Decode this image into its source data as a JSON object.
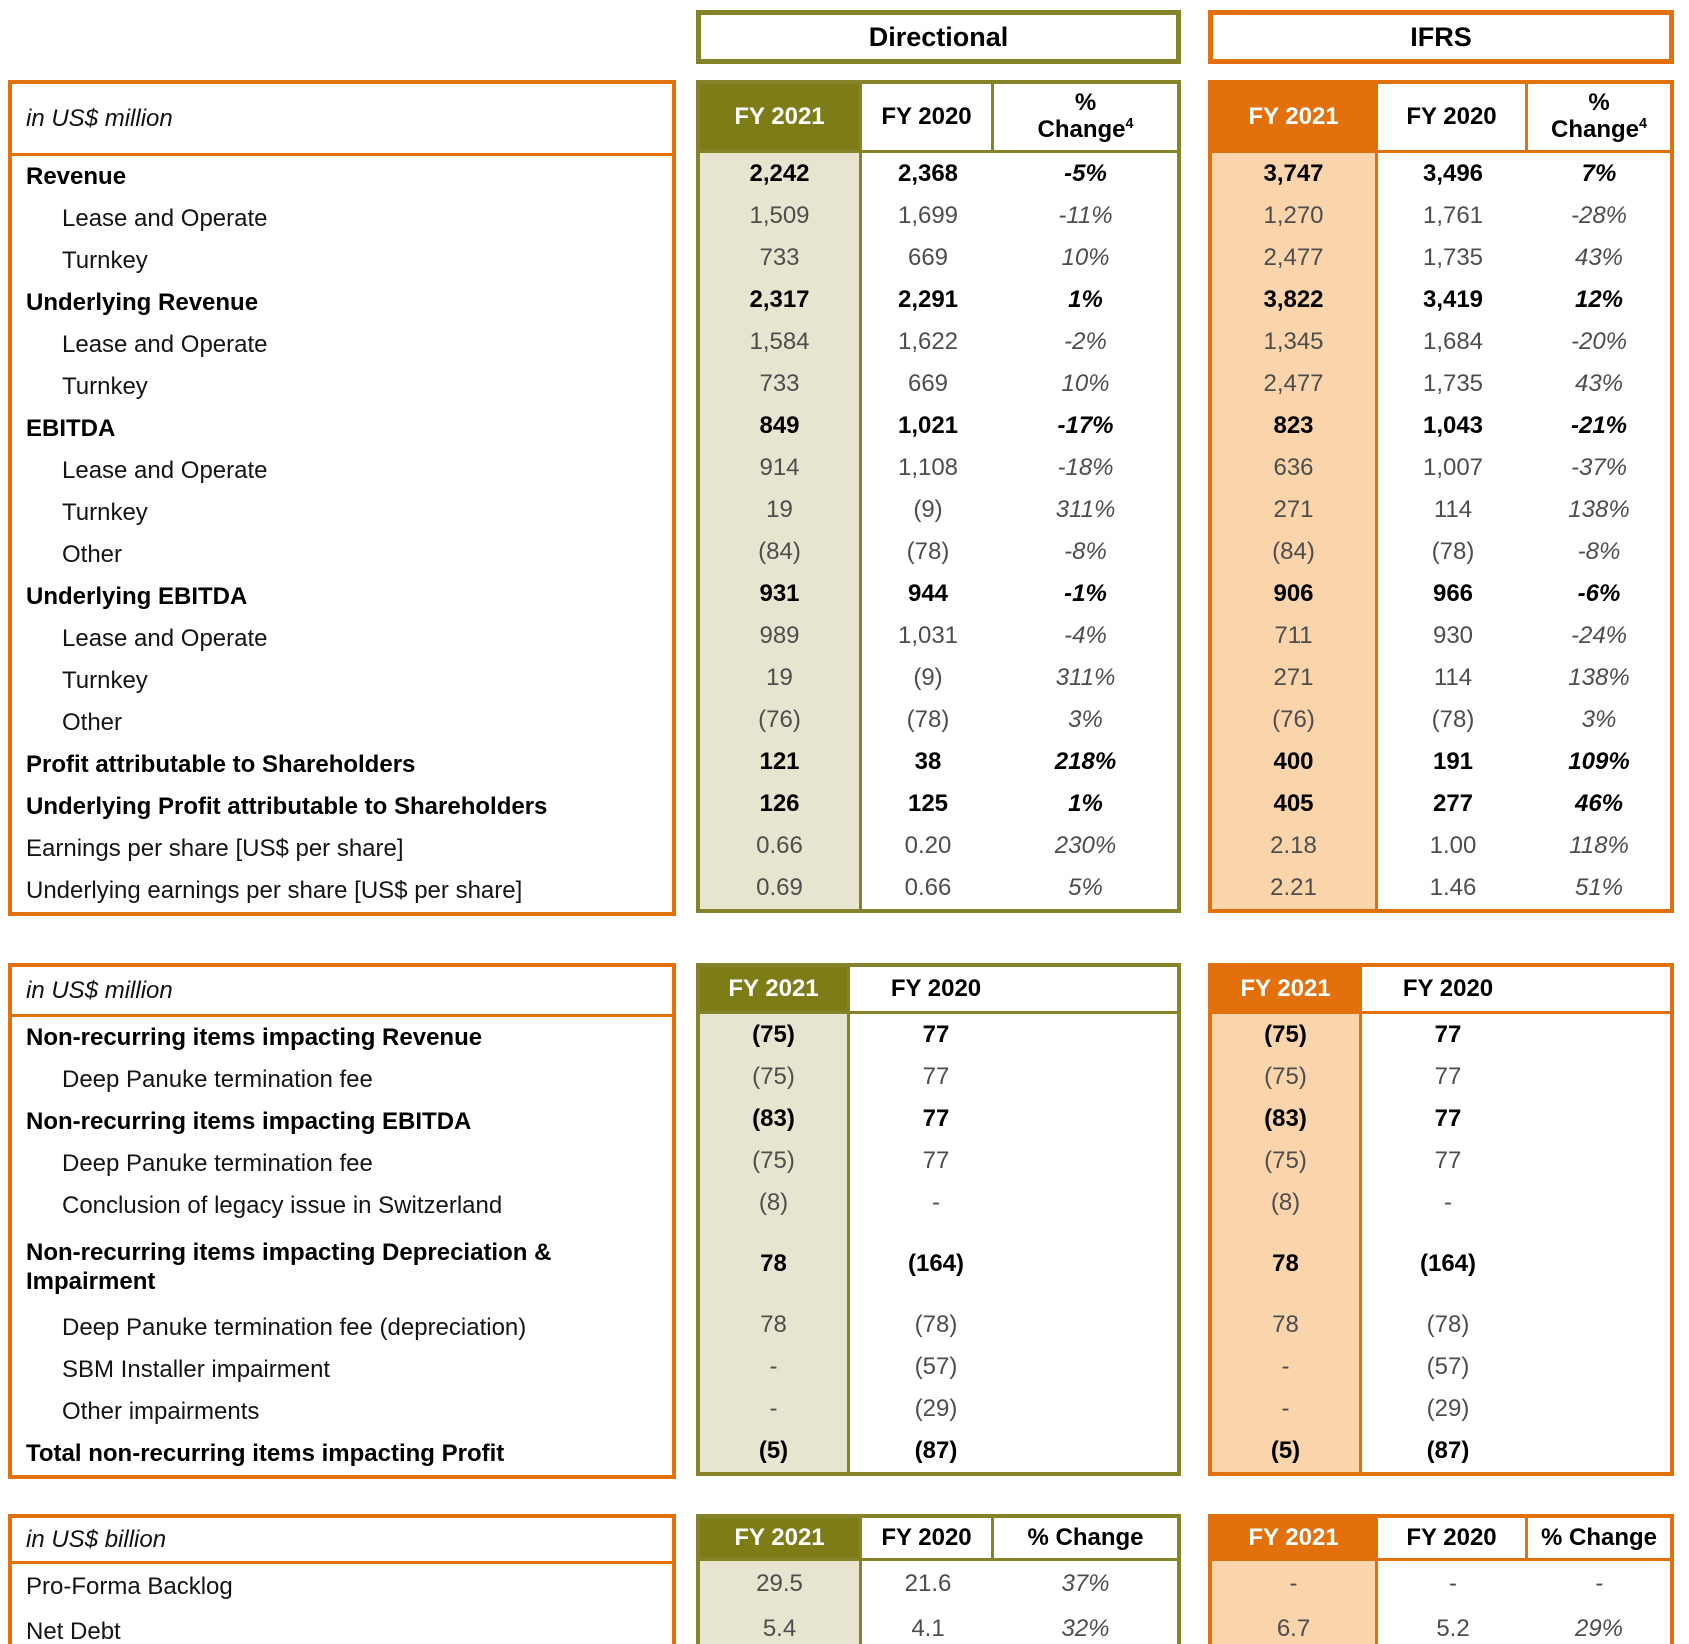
{
  "colors": {
    "orange": "#E2700D",
    "orange_light": "#FAD4AB",
    "olive": "#7D7C17",
    "olive_border": "#84832A",
    "olive_light": "#E7E5D0",
    "page_background": "#FFFFFF"
  },
  "groups": [
    {
      "title": "Directional"
    },
    {
      "title": "IFRS"
    }
  ],
  "tables": [
    {
      "unit_label": "in US$ million",
      "headers": {
        "fy2021": "FY 2021",
        "fy2020": "FY 2020",
        "change_line1": "%",
        "change_line2": "Change",
        "change_sup": "4",
        "has_change": true,
        "change_two_line": true
      },
      "rows": [
        {
          "label": "Revenue",
          "bold": true,
          "indent": false,
          "dir": [
            "2,242",
            "2,368",
            "-5%"
          ],
          "ifrs": [
            "3,747",
            "3,496",
            "7%"
          ]
        },
        {
          "label": "Lease and Operate",
          "bold": false,
          "indent": true,
          "dir": [
            "1,509",
            "1,699",
            "-11%"
          ],
          "ifrs": [
            "1,270",
            "1,761",
            "-28%"
          ]
        },
        {
          "label": "Turnkey",
          "bold": false,
          "indent": true,
          "dir": [
            "733",
            "669",
            "10%"
          ],
          "ifrs": [
            "2,477",
            "1,735",
            "43%"
          ]
        },
        {
          "label": "Underlying Revenue",
          "bold": true,
          "indent": false,
          "dir": [
            "2,317",
            "2,291",
            "1%"
          ],
          "ifrs": [
            "3,822",
            "3,419",
            "12%"
          ]
        },
        {
          "label": "Lease and Operate",
          "bold": false,
          "indent": true,
          "dir": [
            "1,584",
            "1,622",
            "-2%"
          ],
          "ifrs": [
            "1,345",
            "1,684",
            "-20%"
          ]
        },
        {
          "label": "Turnkey",
          "bold": false,
          "indent": true,
          "dir": [
            "733",
            "669",
            "10%"
          ],
          "ifrs": [
            "2,477",
            "1,735",
            "43%"
          ]
        },
        {
          "label": "EBITDA",
          "bold": true,
          "indent": false,
          "dir": [
            "849",
            "1,021",
            "-17%"
          ],
          "ifrs": [
            "823",
            "1,043",
            "-21%"
          ]
        },
        {
          "label": "Lease and Operate",
          "bold": false,
          "indent": true,
          "dir": [
            "914",
            "1,108",
            "-18%"
          ],
          "ifrs": [
            "636",
            "1,007",
            "-37%"
          ]
        },
        {
          "label": "Turnkey",
          "bold": false,
          "indent": true,
          "dir": [
            "19",
            "(9)",
            "311%"
          ],
          "ifrs": [
            "271",
            "114",
            "138%"
          ]
        },
        {
          "label": "Other",
          "bold": false,
          "indent": true,
          "dir": [
            "(84)",
            "(78)",
            "-8%"
          ],
          "ifrs": [
            "(84)",
            "(78)",
            "-8%"
          ]
        },
        {
          "label": "Underlying EBITDA",
          "bold": true,
          "indent": false,
          "dir": [
            "931",
            "944",
            "-1%"
          ],
          "ifrs": [
            "906",
            "966",
            "-6%"
          ]
        },
        {
          "label": "Lease and Operate",
          "bold": false,
          "indent": true,
          "dir": [
            "989",
            "1,031",
            "-4%"
          ],
          "ifrs": [
            "711",
            "930",
            "-24%"
          ]
        },
        {
          "label": "Turnkey",
          "bold": false,
          "indent": true,
          "dir": [
            "19",
            "(9)",
            "311%"
          ],
          "ifrs": [
            "271",
            "114",
            "138%"
          ]
        },
        {
          "label": "Other",
          "bold": false,
          "indent": true,
          "dir": [
            "(76)",
            "(78)",
            "3%"
          ],
          "ifrs": [
            "(76)",
            "(78)",
            "3%"
          ]
        },
        {
          "label": "Profit attributable to Shareholders",
          "bold": true,
          "indent": false,
          "dir": [
            "121",
            "38",
            "218%"
          ],
          "ifrs": [
            "400",
            "191",
            "109%"
          ]
        },
        {
          "label": "Underlying Profit attributable to Shareholders",
          "bold": true,
          "indent": false,
          "dir": [
            "126",
            "125",
            "1%"
          ],
          "ifrs": [
            "405",
            "277",
            "46%"
          ]
        },
        {
          "label": "Earnings per share [US$ per share]",
          "bold": false,
          "indent": false,
          "dir": [
            "0.66",
            "0.20",
            "230%"
          ],
          "ifrs": [
            "2.18",
            "1.00",
            "118%"
          ]
        },
        {
          "label": "Underlying earnings per share [US$ per share]",
          "bold": false,
          "indent": false,
          "dir": [
            "0.69",
            "0.66",
            "5%"
          ],
          "ifrs": [
            "2.21",
            "1.46",
            "51%"
          ]
        }
      ]
    },
    {
      "unit_label": "in US$ million",
      "headers": {
        "fy2021": "FY 2021",
        "fy2020": "FY 2020",
        "has_change": false
      },
      "rows": [
        {
          "label": "Non-recurring items impacting Revenue",
          "bold": true,
          "indent": false,
          "dir": [
            "(75)",
            "77"
          ],
          "ifrs": [
            "(75)",
            "77"
          ]
        },
        {
          "label": "Deep Panuke termination fee",
          "bold": false,
          "indent": true,
          "dir": [
            "(75)",
            "77"
          ],
          "ifrs": [
            "(75)",
            "77"
          ]
        },
        {
          "label": "Non-recurring items impacting EBITDA",
          "bold": true,
          "indent": false,
          "dir": [
            "(83)",
            "77"
          ],
          "ifrs": [
            "(83)",
            "77"
          ]
        },
        {
          "label": "Deep Panuke termination fee",
          "bold": false,
          "indent": true,
          "dir": [
            "(75)",
            "77"
          ],
          "ifrs": [
            "(75)",
            "77"
          ]
        },
        {
          "label": "Conclusion of legacy issue in Switzerland",
          "bold": false,
          "indent": true,
          "dir": [
            "(8)",
            "-"
          ],
          "ifrs": [
            "(8)",
            "-"
          ]
        },
        {
          "label": "Non-recurring items impacting Depreciation & Impairment",
          "bold": true,
          "indent": false,
          "tall": true,
          "dir": [
            "78",
            "(164)"
          ],
          "ifrs": [
            "78",
            "(164)"
          ]
        },
        {
          "label": "Deep Panuke termination fee (depreciation)",
          "bold": false,
          "indent": true,
          "dir": [
            "78",
            "(78)"
          ],
          "ifrs": [
            "78",
            "(78)"
          ]
        },
        {
          "label": "SBM Installer impairment",
          "bold": false,
          "indent": true,
          "dir": [
            "-",
            "(57)"
          ],
          "ifrs": [
            "-",
            "(57)"
          ]
        },
        {
          "label": "Other impairments",
          "bold": false,
          "indent": true,
          "dir": [
            "-",
            "(29)"
          ],
          "ifrs": [
            "-",
            "(29)"
          ]
        },
        {
          "label": "Total non-recurring items impacting Profit",
          "bold": true,
          "indent": false,
          "dir": [
            "(5)",
            "(87)"
          ],
          "ifrs": [
            "(5)",
            "(87)"
          ]
        }
      ]
    },
    {
      "unit_label": "in US$ billion",
      "headers": {
        "fy2021": "FY 2021",
        "fy2020": "FY 2020",
        "change_single": "% Change",
        "has_change": true,
        "change_two_line": false
      },
      "rows": [
        {
          "label": "Pro-Forma Backlog",
          "bold": false,
          "indent": false,
          "dir": [
            "29.5",
            "21.6",
            "37%"
          ],
          "ifrs": [
            "-",
            "-",
            "-"
          ]
        },
        {
          "label": "Net Debt",
          "bold": false,
          "indent": false,
          "dir": [
            "5.4",
            "4.1",
            "32%"
          ],
          "ifrs": [
            "6.7",
            "5.2",
            "29%"
          ]
        }
      ]
    }
  ]
}
